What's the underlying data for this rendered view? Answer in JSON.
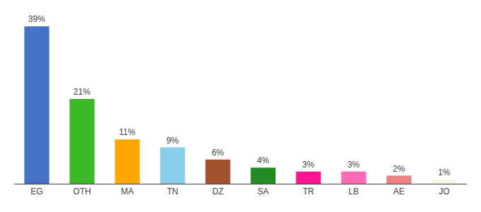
{
  "chart_data": {
    "type": "bar",
    "categories": [
      "EG",
      "OTH",
      "MA",
      "TN",
      "DZ",
      "SA",
      "TR",
      "LB",
      "AE",
      "JO"
    ],
    "values": [
      39,
      21,
      11,
      9,
      6,
      4,
      3,
      3,
      2,
      1
    ],
    "value_labels": [
      "39%",
      "21%",
      "11%",
      "9%",
      "6%",
      "4%",
      "3%",
      "3%",
      "2%",
      "1%"
    ],
    "colors": [
      "#4472c4",
      "#3cb828",
      "#ffa500",
      "#87ceeb",
      "#a0522d",
      "#228b22",
      "#ff1493",
      "#ff69b4",
      "#f08080",
      "#f5f5dc"
    ],
    "ylim": [
      0,
      42
    ],
    "data_labels": true,
    "tick_labels": "x",
    "grid": false
  }
}
